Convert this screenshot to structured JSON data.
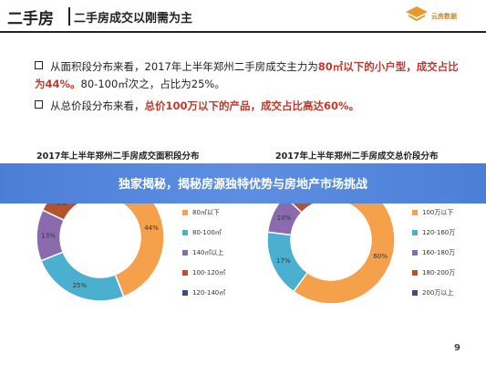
{
  "header": {
    "title_main": "二手房",
    "title_sub": "二手房成交以刚需为主",
    "logo_text": "云房数据"
  },
  "bullets": [
    {
      "pre": "从面积段分布来看，2017年上半年郑州二手房成交主力为",
      "highlight1": "80㎡以下的小户型，成交占比为44%。",
      "post": "80-100㎡次之，占比为25%。"
    },
    {
      "pre": "从总价段分布来看，",
      "highlight1": "总价100万以下的产品，成交占比高达60%。",
      "post": ""
    }
  ],
  "banner": {
    "text": "独家揭秘，揭秘房源独特优势与房地产市场挑战"
  },
  "colors": {
    "orange": "#f5a04a",
    "blue": "#4bb0cf",
    "purple": "#8b6bad",
    "brown": "#b5532c",
    "navy": "#3b4f86",
    "banner": "#4b7fd6"
  },
  "chart_data": [
    {
      "type": "pie",
      "title": "2017年上半年郑州二手房成交面积段分布",
      "categories": [
        "80㎡以下",
        "80-100㎡",
        "140㎡以上",
        "100-120㎡",
        "120-140㎡"
      ],
      "values": [
        44,
        25,
        13,
        9,
        9
      ],
      "labels": [
        "44%",
        "25%",
        "13%",
        "9%",
        ""
      ],
      "colors": [
        "#f5a04a",
        "#4bb0cf",
        "#8b6bad",
        "#b5532c",
        "#3b4f86"
      ],
      "legend_position": "right"
    },
    {
      "type": "pie",
      "title": "2017年上半年郑州二手房成交总价段分布",
      "categories": [
        "100万以下",
        "120-160万",
        "160-180万",
        "180-200万",
        "200万以上"
      ],
      "values": [
        60,
        17,
        10,
        7,
        6
      ],
      "labels": [
        "60%",
        "17%",
        "10%",
        "",
        ""
      ],
      "colors": [
        "#f5a04a",
        "#4bb0cf",
        "#8b6bad",
        "#b5532c",
        "#3b4f86"
      ],
      "legend_position": "right"
    }
  ],
  "page_number": "9"
}
